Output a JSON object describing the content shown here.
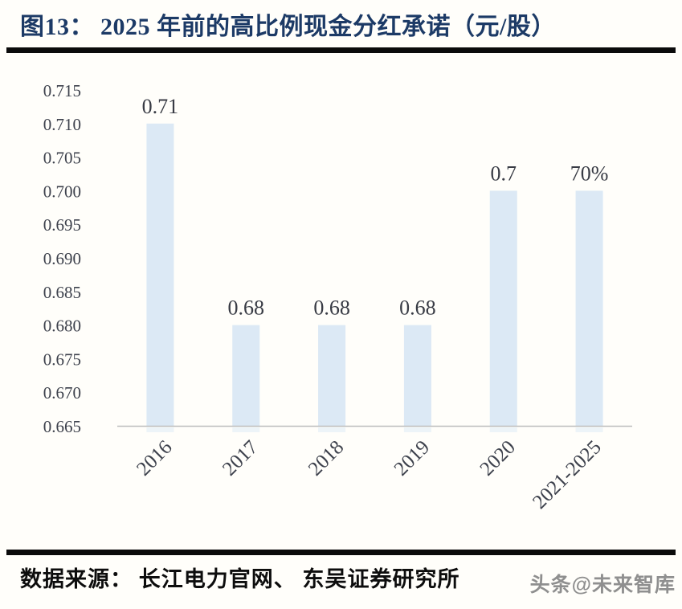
{
  "header": {
    "title": "图13：  2025 年前的高比例现金分红承诺（元/股）"
  },
  "footer": {
    "source": "数据来源：  长江电力官网、  东吴证券研究所",
    "watermark": "头条@未来智库"
  },
  "chart_data": {
    "type": "bar",
    "title": "2025 年前的高比例现金分红承诺（元/股）",
    "categories": [
      "2016",
      "2017",
      "2018",
      "2019",
      "2020",
      "2021-2025"
    ],
    "values": [
      0.71,
      0.68,
      0.68,
      0.68,
      0.7,
      0.7
    ],
    "value_labels": [
      "0.71",
      "0.68",
      "0.68",
      "0.68",
      "0.7",
      "70%"
    ],
    "xlabel": "",
    "ylabel": "",
    "ylim": [
      0.665,
      0.715
    ],
    "ytick_step": 0.005,
    "ytick_labels_top_to_bottom": [
      "0.715",
      "0.710",
      "0.705",
      "0.700",
      "0.695",
      "0.690",
      "0.685",
      "0.680",
      "0.675",
      "0.670",
      "0.665"
    ],
    "grid": false,
    "legend_position": "none",
    "bar_color": "#dce9f5",
    "axis_line_color": "#bdbdbd",
    "tick_text_color": "#3d414c",
    "value_text_color": "#383b44",
    "title_color": "#1c3a66"
  }
}
